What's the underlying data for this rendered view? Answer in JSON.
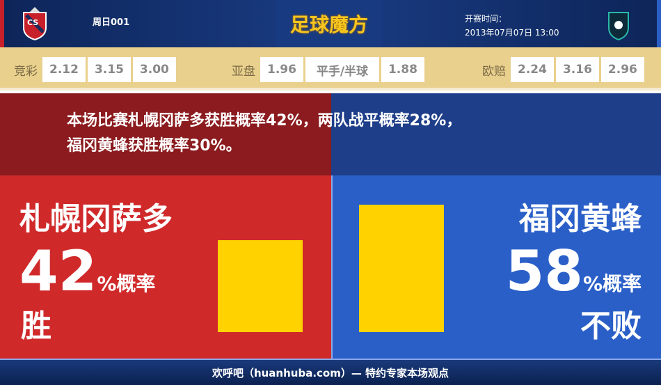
{
  "header": {
    "match_no": "周日001",
    "brand": "足球魔方",
    "kickoff_label": "开赛时间：",
    "kickoff_time": "2013年07月07日 13:00",
    "home_logo": "consadole-sapporo-crest",
    "away_logo": "avispa-fukuoka-crest"
  },
  "odds": {
    "jingcai": {
      "label": "竞彩",
      "values": [
        "2.12",
        "3.15",
        "3.00"
      ]
    },
    "yapan": {
      "label": "亚盘",
      "values": [
        "1.96",
        "平手/半球",
        "1.88"
      ]
    },
    "oupei": {
      "label": "欧赔",
      "values": [
        "2.24",
        "3.16",
        "2.96"
      ]
    }
  },
  "banner": {
    "line1": "本场比赛札幌冈萨多获胜概率42%，两队战平概率28%，",
    "line2": "福冈黄蜂获胜概率30%。"
  },
  "home": {
    "team": "札幌冈萨多",
    "pct": "42",
    "pct_suffix": "%概率",
    "result": "胜",
    "value": 42
  },
  "away": {
    "team": "福冈黄蜂",
    "pct": "58",
    "pct_suffix": "%概率",
    "result": "不败",
    "value": 58
  },
  "colors": {
    "home": "#d0292a",
    "away": "#2a5fc8",
    "bar": "#ffd200"
  },
  "footer": {
    "text": "欢呼吧（huanhuba.com）— 特约专家本场观点"
  }
}
